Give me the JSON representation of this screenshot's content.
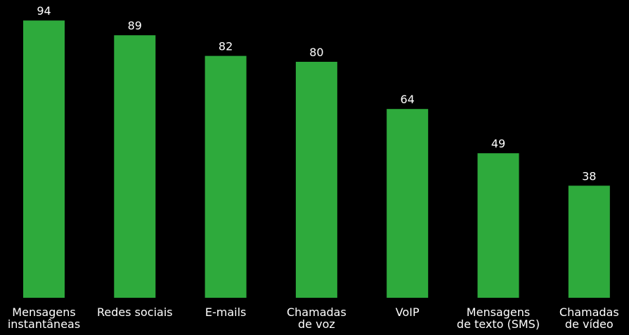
{
  "chart_data": {
    "type": "bar",
    "categories": [
      [
        "Mensagens",
        "instantâneas"
      ],
      [
        "Redes sociais"
      ],
      [
        "E-mails"
      ],
      [
        "Chamadas",
        "de voz"
      ],
      [
        "VoIP"
      ],
      [
        "Mensagens",
        "de texto (SMS)"
      ],
      [
        "Chamadas",
        "de vídeo"
      ]
    ],
    "values": [
      94,
      89,
      82,
      80,
      64,
      49,
      38
    ],
    "ylim": [
      0,
      100
    ],
    "grid": false,
    "legend": "none"
  },
  "colors": {
    "background": "#000000",
    "bar": "#2eaa3c",
    "text": "#ffffff"
  }
}
